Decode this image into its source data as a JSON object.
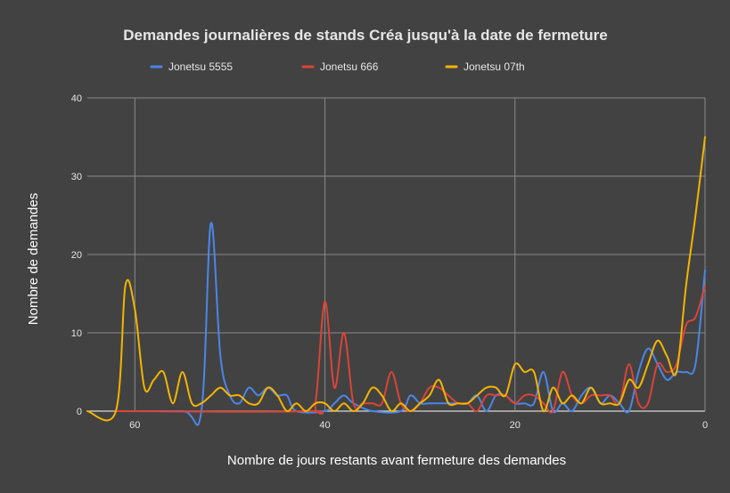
{
  "chart_data": {
    "type": "line",
    "title": "Demandes journalières de stands Créa jusqu'à la date de fermeture",
    "xlabel": "Nombre de jours restants avant fermeture des demandes",
    "ylabel": "Nombre de demandes",
    "xlim": [
      65,
      0
    ],
    "ylim": [
      0,
      40
    ],
    "x_ticks": [
      60,
      40,
      20,
      0
    ],
    "y_ticks": [
      0,
      10,
      20,
      30,
      40
    ],
    "grid": true,
    "legend_position": "top",
    "series": [
      {
        "name": "Jonetsu 5555",
        "color": "#4a86e8",
        "points": [
          [
            62,
            0
          ],
          [
            55,
            0
          ],
          [
            53,
            0
          ],
          [
            52,
            24
          ],
          [
            51,
            7
          ],
          [
            50,
            2
          ],
          [
            49,
            1
          ],
          [
            48,
            3
          ],
          [
            47,
            2
          ],
          [
            46,
            3
          ],
          [
            45,
            2
          ],
          [
            44,
            2
          ],
          [
            43,
            0
          ],
          [
            40,
            0
          ],
          [
            39,
            1
          ],
          [
            38,
            2
          ],
          [
            37,
            1
          ],
          [
            35,
            0
          ],
          [
            32,
            0
          ],
          [
            31,
            2
          ],
          [
            30,
            1
          ],
          [
            29,
            1
          ],
          [
            28,
            1
          ],
          [
            27,
            1
          ],
          [
            26,
            1
          ],
          [
            25,
            1
          ],
          [
            24,
            2
          ],
          [
            23,
            0
          ],
          [
            22,
            2
          ],
          [
            21,
            2
          ],
          [
            20,
            1
          ],
          [
            19,
            1
          ],
          [
            18,
            1
          ],
          [
            17,
            5
          ],
          [
            16,
            0
          ],
          [
            15,
            1
          ],
          [
            14,
            0
          ],
          [
            13,
            2
          ],
          [
            12,
            3
          ],
          [
            11,
            1
          ],
          [
            10,
            2
          ],
          [
            9,
            1
          ],
          [
            8,
            0
          ],
          [
            7,
            5
          ],
          [
            6,
            8
          ],
          [
            5,
            6
          ],
          [
            4,
            4
          ],
          [
            3,
            5
          ],
          [
            2,
            5
          ],
          [
            1,
            6
          ],
          [
            0,
            18
          ]
        ]
      },
      {
        "name": "Jonetsu 666",
        "color": "#db4437",
        "points": [
          [
            62,
            0
          ],
          [
            42,
            0
          ],
          [
            41,
            1
          ],
          [
            40,
            14
          ],
          [
            39,
            3
          ],
          [
            38,
            10
          ],
          [
            37,
            1
          ],
          [
            36,
            1
          ],
          [
            35,
            1
          ],
          [
            34,
            1
          ],
          [
            33,
            5
          ],
          [
            32,
            1
          ],
          [
            31,
            0
          ],
          [
            30,
            1
          ],
          [
            29,
            3
          ],
          [
            28,
            3
          ],
          [
            27,
            2
          ],
          [
            26,
            1
          ],
          [
            25,
            1
          ],
          [
            24,
            0
          ],
          [
            23,
            2
          ],
          [
            22,
            2
          ],
          [
            21,
            2
          ],
          [
            20,
            1
          ],
          [
            19,
            2
          ],
          [
            18,
            2
          ],
          [
            17,
            1
          ],
          [
            16,
            0
          ],
          [
            15,
            5
          ],
          [
            14,
            2
          ],
          [
            13,
            1
          ],
          [
            12,
            2
          ],
          [
            11,
            2
          ],
          [
            10,
            2
          ],
          [
            9,
            1
          ],
          [
            8,
            6
          ],
          [
            7,
            1
          ],
          [
            6,
            1
          ],
          [
            5,
            6
          ],
          [
            4,
            5
          ],
          [
            3,
            6
          ],
          [
            2,
            11
          ],
          [
            1,
            12
          ],
          [
            0,
            16
          ]
        ]
      },
      {
        "name": "Jonetsu 07th",
        "color": "#f4b400",
        "points": [
          [
            65,
            0
          ],
          [
            62,
            0
          ],
          [
            61,
            16
          ],
          [
            60,
            13
          ],
          [
            59,
            3
          ],
          [
            58,
            4
          ],
          [
            57,
            5
          ],
          [
            56,
            1
          ],
          [
            55,
            5
          ],
          [
            54,
            1
          ],
          [
            53,
            1
          ],
          [
            52,
            2
          ],
          [
            51,
            3
          ],
          [
            50,
            2
          ],
          [
            49,
            2
          ],
          [
            48,
            1
          ],
          [
            47,
            1
          ],
          [
            46,
            3
          ],
          [
            45,
            2
          ],
          [
            44,
            0
          ],
          [
            43,
            1
          ],
          [
            42,
            0
          ],
          [
            41,
            1
          ],
          [
            40,
            1
          ],
          [
            39,
            0
          ],
          [
            38,
            1
          ],
          [
            37,
            0
          ],
          [
            36,
            1
          ],
          [
            35,
            3
          ],
          [
            34,
            2
          ],
          [
            33,
            0
          ],
          [
            32,
            1
          ],
          [
            31,
            0
          ],
          [
            30,
            1
          ],
          [
            29,
            2
          ],
          [
            28,
            4
          ],
          [
            27,
            1
          ],
          [
            26,
            1
          ],
          [
            25,
            1
          ],
          [
            24,
            2
          ],
          [
            23,
            3
          ],
          [
            22,
            3
          ],
          [
            21,
            2
          ],
          [
            20,
            6
          ],
          [
            19,
            5
          ],
          [
            18,
            5
          ],
          [
            17,
            0
          ],
          [
            16,
            3
          ],
          [
            15,
            1
          ],
          [
            14,
            2
          ],
          [
            13,
            1
          ],
          [
            12,
            3
          ],
          [
            11,
            1
          ],
          [
            10,
            1
          ],
          [
            9,
            1
          ],
          [
            8,
            4
          ],
          [
            7,
            3
          ],
          [
            6,
            6
          ],
          [
            5,
            9
          ],
          [
            4,
            7
          ],
          [
            3,
            5
          ],
          [
            2,
            16
          ],
          [
            1,
            25
          ],
          [
            0,
            35
          ]
        ]
      }
    ]
  }
}
